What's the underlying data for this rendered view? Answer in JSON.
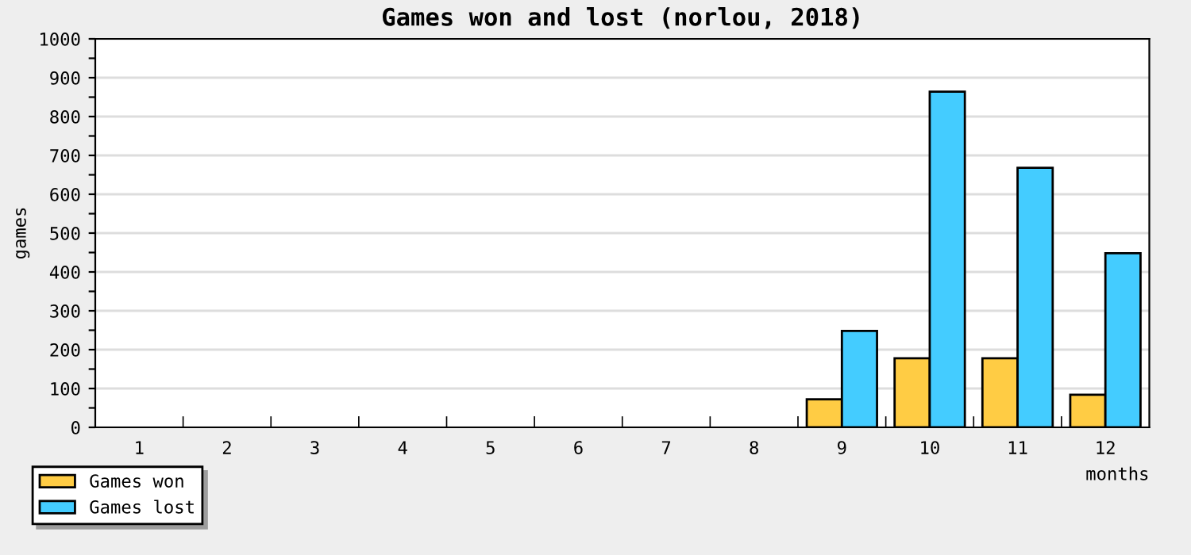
{
  "chart_data": {
    "type": "bar",
    "title": "Games won and lost (norlou, 2018)",
    "xlabel": "months",
    "ylabel": "games",
    "categories": [
      "1",
      "2",
      "3",
      "4",
      "5",
      "6",
      "7",
      "8",
      "9",
      "10",
      "11",
      "12"
    ],
    "series": [
      {
        "name": "Games won",
        "color": "#ffcc44",
        "values": [
          null,
          null,
          null,
          null,
          null,
          null,
          null,
          null,
          72,
          178,
          178,
          84
        ]
      },
      {
        "name": "Games lost",
        "color": "#44ccff",
        "values": [
          null,
          null,
          null,
          null,
          null,
          null,
          null,
          null,
          248,
          864,
          668,
          448
        ]
      }
    ],
    "ylim": [
      0,
      1000
    ],
    "yticks": [
      0,
      {
        "value": 50,
        "label": null
      },
      100,
      {
        "value": 150,
        "label": null
      },
      200,
      {
        "value": 250,
        "label": null
      },
      300,
      {
        "value": 350,
        "label": null
      },
      400,
      {
        "value": 450,
        "label": null
      },
      500,
      {
        "value": 550,
        "label": null
      },
      600,
      {
        "value": 650,
        "label": null
      },
      700,
      {
        "value": 750,
        "label": null
      },
      800,
      {
        "value": 850,
        "label": null
      },
      900,
      {
        "value": 950,
        "label": null
      },
      1000
    ],
    "grid": "y",
    "legend": "bottom left"
  }
}
